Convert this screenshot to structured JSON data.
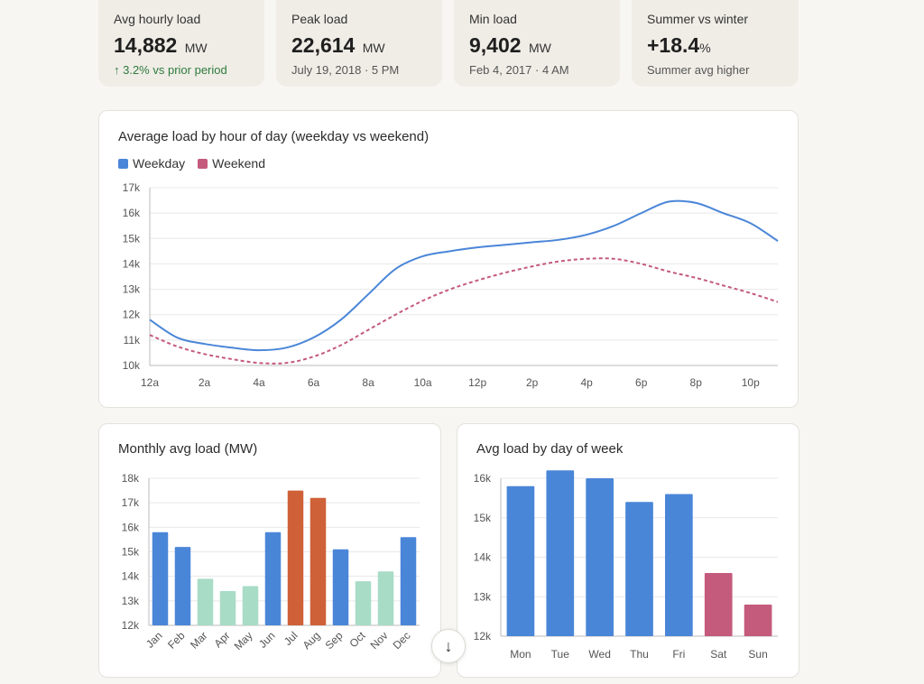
{
  "stats": [
    {
      "label": "Avg hourly load",
      "value": "14,882",
      "unit": "MW",
      "sub": "↑ 3.2% vs prior period",
      "sub_positive": true
    },
    {
      "label": "Peak load",
      "value": "22,614",
      "unit": "MW",
      "sub": "July 19, 2018 · 5 PM",
      "sub_positive": false
    },
    {
      "label": "Min load",
      "value": "9,402",
      "unit": "MW",
      "sub": "Feb 4, 2017 · 4 AM",
      "sub_positive": false
    },
    {
      "label": "Summer vs winter",
      "value": "+18.4",
      "unit": "%",
      "sub": "Summer avg higher",
      "sub_positive": false
    }
  ],
  "colors": {
    "weekday": "#4a86d8",
    "weekend": "#c45a7c",
    "winter_bar": "#4a86d8",
    "spring_fall_bar": "#a8dcc6",
    "summer_bar": "#cf6139",
    "grid": "#e8e8e8",
    "axis": "#bbbbbb",
    "positive": "#2f7a3e"
  },
  "scroll_button": {
    "icon": "arrow-down-icon",
    "glyph": "↓"
  },
  "chart_data": [
    {
      "type": "line",
      "title": "Average load by hour of day (weekday vs weekend)",
      "x": [
        0,
        1,
        2,
        3,
        4,
        5,
        6,
        7,
        8,
        9,
        10,
        11,
        12,
        13,
        14,
        15,
        16,
        17,
        18,
        19,
        20,
        21,
        22,
        23
      ],
      "xtick_labels": [
        "12a",
        "2a",
        "4a",
        "6a",
        "8a",
        "10a",
        "12p",
        "2p",
        "4p",
        "6p",
        "8p",
        "10p"
      ],
      "ylim": [
        10000,
        17000
      ],
      "yticks": [
        10000,
        11000,
        12000,
        13000,
        14000,
        15000,
        16000,
        17000
      ],
      "ytick_labels": [
        "10k",
        "11k",
        "12k",
        "13k",
        "14k",
        "15k",
        "16k",
        "17k"
      ],
      "series": [
        {
          "name": "Weekday",
          "values": [
            11800,
            11100,
            10850,
            10700,
            10600,
            10700,
            11100,
            11800,
            12800,
            13800,
            14300,
            14500,
            14650,
            14750,
            14850,
            14950,
            15150,
            15500,
            16000,
            16450,
            16400,
            16000,
            15600,
            14900
          ]
        },
        {
          "name": "Weekend",
          "values": [
            11200,
            10750,
            10450,
            10250,
            10100,
            10100,
            10350,
            10800,
            11400,
            12000,
            12550,
            13000,
            13350,
            13650,
            13900,
            14100,
            14200,
            14200,
            14000,
            13700,
            13450,
            13150,
            12850,
            12500
          ]
        }
      ],
      "grid": true,
      "legend": "top-left"
    },
    {
      "type": "bar",
      "title": "Monthly avg load (MW)",
      "categories": [
        "Jan",
        "Feb",
        "Mar",
        "Apr",
        "May",
        "Jun",
        "Jul",
        "Aug",
        "Sep",
        "Oct",
        "Nov",
        "Dec"
      ],
      "values": [
        15800,
        15200,
        13900,
        13400,
        13600,
        15800,
        17500,
        17200,
        15100,
        13800,
        14200,
        15600
      ],
      "ylim": [
        12000,
        18000
      ],
      "yticks": [
        12000,
        13000,
        14000,
        15000,
        16000,
        17000,
        18000
      ],
      "ytick_labels": [
        "12k",
        "13k",
        "14k",
        "15k",
        "16k",
        "17k",
        "18k"
      ],
      "grid": true
    },
    {
      "type": "bar",
      "title": "Avg load by day of week",
      "categories": [
        "Mon",
        "Tue",
        "Wed",
        "Thu",
        "Fri",
        "Sat",
        "Sun"
      ],
      "values": [
        15800,
        16200,
        16000,
        15400,
        15600,
        13600,
        12800
      ],
      "ylim": [
        12000,
        16000
      ],
      "yticks": [
        12000,
        13000,
        14000,
        15000,
        16000
      ],
      "ytick_labels": [
        "12k",
        "13k",
        "14k",
        "15k",
        "16k"
      ],
      "grid": true
    }
  ]
}
